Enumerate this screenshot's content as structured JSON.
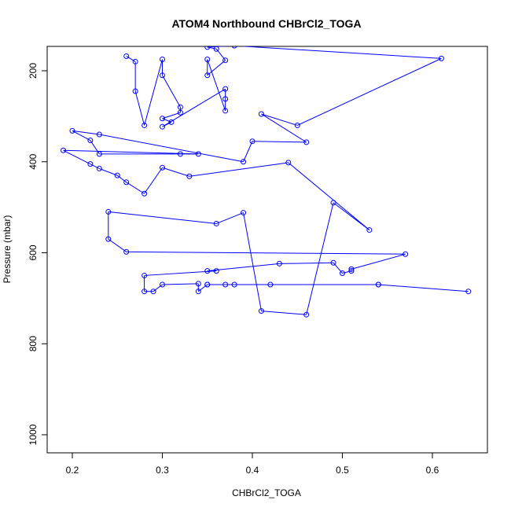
{
  "chart_data": {
    "type": "line",
    "title": "ATOM4 Northbound CHBrCl2_TOGA",
    "xlabel": "CHBrCl2_TOGA",
    "ylabel": "Pressure (mbar)",
    "xlim": [
      0.17,
      0.655
    ],
    "ylim": [
      1040,
      150
    ],
    "y_inverted": true,
    "x_ticks": [
      0.2,
      0.3,
      0.4,
      0.5,
      0.6
    ],
    "x_tick_labels": [
      "0.2",
      "0.3",
      "0.4",
      "0.5",
      "0.6"
    ],
    "y_ticks": [
      200,
      400,
      600,
      800,
      1000
    ],
    "y_tick_labels": [
      "200",
      "400",
      "600",
      "800",
      "1000"
    ],
    "grid": false,
    "colors": {
      "series": "#0000ff",
      "axes": "#000000"
    },
    "marker": "open-circle",
    "series": [
      {
        "points": [
          [
            0.26,
            168
          ],
          [
            0.27,
            180
          ],
          [
            0.27,
            245
          ],
          [
            0.28,
            320
          ],
          [
            0.3,
            175
          ],
          [
            0.3,
            210
          ],
          [
            0.32,
            280
          ],
          [
            0.32,
            292
          ],
          [
            0.3,
            305
          ],
          [
            0.31,
            313
          ],
          [
            0.3,
            323
          ],
          [
            0.37,
            240
          ],
          [
            0.37,
            262
          ],
          [
            0.37,
            288
          ],
          [
            0.35,
            175
          ],
          [
            0.35,
            210
          ],
          [
            0.37,
            177
          ],
          [
            0.36,
            152
          ],
          [
            0.35,
            148
          ],
          [
            0.38,
            145
          ],
          [
            0.61,
            173
          ],
          [
            0.45,
            320
          ],
          [
            0.41,
            295
          ],
          [
            0.46,
            357
          ],
          [
            0.4,
            355
          ],
          [
            0.39,
            400
          ],
          [
            0.23,
            340
          ],
          [
            0.2,
            332
          ],
          [
            0.22,
            353
          ],
          [
            0.23,
            383
          ],
          [
            0.32,
            383
          ],
          [
            0.34,
            383
          ],
          [
            0.19,
            375
          ],
          [
            0.22,
            405
          ],
          [
            0.23,
            415
          ],
          [
            0.25,
            430
          ],
          [
            0.26,
            445
          ],
          [
            0.28,
            470
          ],
          [
            0.3,
            413
          ],
          [
            0.33,
            432
          ],
          [
            0.44,
            402
          ],
          [
            0.53,
            550
          ],
          [
            0.49,
            490
          ],
          [
            0.46,
            736
          ],
          [
            0.41,
            728
          ],
          [
            0.39,
            512
          ],
          [
            0.36,
            536
          ],
          [
            0.24,
            510
          ],
          [
            0.24,
            570
          ],
          [
            0.26,
            598
          ],
          [
            0.57,
            603
          ],
          [
            0.51,
            636
          ],
          [
            0.51,
            640
          ],
          [
            0.5,
            645
          ],
          [
            0.49,
            622
          ],
          [
            0.43,
            624
          ],
          [
            0.35,
            640
          ],
          [
            0.36,
            640
          ],
          [
            0.28,
            650
          ],
          [
            0.28,
            685
          ],
          [
            0.29,
            685
          ],
          [
            0.3,
            670
          ],
          [
            0.34,
            668
          ],
          [
            0.34,
            685
          ],
          [
            0.35,
            670
          ],
          [
            0.35,
            670
          ],
          [
            0.37,
            670
          ],
          [
            0.38,
            670
          ],
          [
            0.42,
            670
          ],
          [
            0.54,
            670
          ],
          [
            0.54,
            670
          ],
          [
            0.64,
            685
          ]
        ]
      }
    ]
  }
}
